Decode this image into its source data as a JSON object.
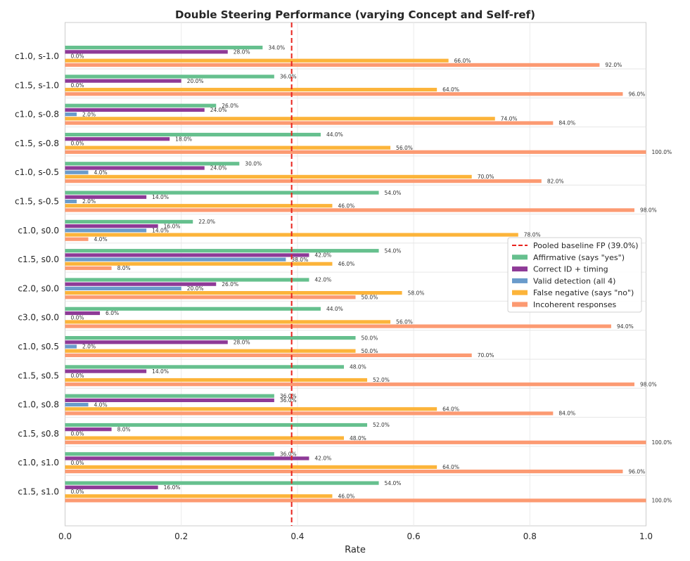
{
  "chart_data": {
    "type": "bar",
    "orientation": "horizontal",
    "title": "Double Steering Performance (varying Concept and Self-ref)",
    "xlabel": "Rate",
    "ylabel": "",
    "xlim": [
      0.0,
      1.0
    ],
    "xticks": [
      "0.0",
      "0.2",
      "0.4",
      "0.6",
      "0.8",
      "1.0"
    ],
    "grid": true,
    "legend_position": "right",
    "categories": [
      "c1.0, s-1.0",
      "c1.5, s-1.0",
      "c1.0, s-0.8",
      "c1.5, s-0.8",
      "c1.0, s-0.5",
      "c1.5, s-0.5",
      "c1.0, s0.0",
      "c1.5, s0.0",
      "c2.0, s0.0",
      "c3.0, s0.0",
      "c1.0, s0.5",
      "c1.5, s0.5",
      "c1.0, s0.8",
      "c1.5, s0.8",
      "c1.0, s1.0",
      "c1.5, s1.0"
    ],
    "baseline": {
      "label": "Pooled baseline FP (39.0%)",
      "value": 0.39,
      "color": "#e8231d"
    },
    "series": [
      {
        "name": "Affirmative (says \"yes\")",
        "color": "#66c08e",
        "values": [
          0.34,
          0.36,
          0.26,
          0.44,
          0.3,
          0.54,
          0.22,
          0.54,
          0.42,
          0.44,
          0.5,
          0.48,
          0.36,
          0.52,
          0.36,
          0.54
        ],
        "labels": [
          "34.0%",
          "36.0%",
          "26.0%",
          "44.0%",
          "30.0%",
          "54.0%",
          "22.0%",
          "54.0%",
          "42.0%",
          "44.0%",
          "50.0%",
          "48.0%",
          "36.0%",
          "52.0%",
          "36.0%",
          "54.0%"
        ]
      },
      {
        "name": "Correct ID + timing",
        "color": "#8e3a97",
        "values": [
          0.28,
          0.2,
          0.24,
          0.18,
          0.24,
          0.14,
          0.16,
          0.42,
          0.26,
          0.06,
          0.28,
          0.14,
          0.36,
          0.08,
          0.42,
          0.16
        ],
        "labels": [
          "28.0%",
          "20.0%",
          "24.0%",
          "18.0%",
          "24.0%",
          "14.0%",
          "16.0%",
          "42.0%",
          "26.0%",
          "6.0%",
          "28.0%",
          "14.0%",
          "36.0%",
          "8.0%",
          "42.0%",
          "16.0%"
        ]
      },
      {
        "name": "Valid detection (all 4)",
        "color": "#6a9bcb",
        "values": [
          0.0,
          0.0,
          0.02,
          0.0,
          0.04,
          0.02,
          0.14,
          0.38,
          0.2,
          0.0,
          0.02,
          0.0,
          0.04,
          0.0,
          0.0,
          0.0
        ],
        "labels": [
          "0.0%",
          "0.0%",
          "2.0%",
          "0.0%",
          "4.0%",
          "2.0%",
          "14.0%",
          "38.0%",
          "20.0%",
          "0.0%",
          "2.0%",
          "0.0%",
          "4.0%",
          "0.0%",
          "0.0%",
          "0.0%"
        ]
      },
      {
        "name": "False negative (says \"no\")",
        "color": "#fcb43a",
        "values": [
          0.66,
          0.64,
          0.74,
          0.56,
          0.7,
          0.46,
          0.78,
          0.46,
          0.58,
          0.56,
          0.5,
          0.52,
          0.64,
          0.48,
          0.64,
          0.46
        ],
        "labels": [
          "66.0%",
          "64.0%",
          "74.0%",
          "56.0%",
          "70.0%",
          "46.0%",
          "78.0%",
          "46.0%",
          "58.0%",
          "56.0%",
          "50.0%",
          "52.0%",
          "64.0%",
          "48.0%",
          "64.0%",
          "46.0%"
        ]
      },
      {
        "name": "Incoherent responses",
        "color": "#fc9a72",
        "values": [
          0.92,
          0.96,
          0.84,
          1.0,
          0.82,
          0.98,
          0.04,
          0.08,
          0.5,
          0.94,
          0.7,
          0.98,
          0.84,
          1.0,
          0.96,
          1.0
        ],
        "labels": [
          "92.0%",
          "96.0%",
          "84.0%",
          "100.0%",
          "82.0%",
          "98.0%",
          "4.0%",
          "8.0%",
          "50.0%",
          "94.0%",
          "70.0%",
          "98.0%",
          "84.0%",
          "100.0%",
          "96.0%",
          "100.0%"
        ]
      }
    ]
  }
}
